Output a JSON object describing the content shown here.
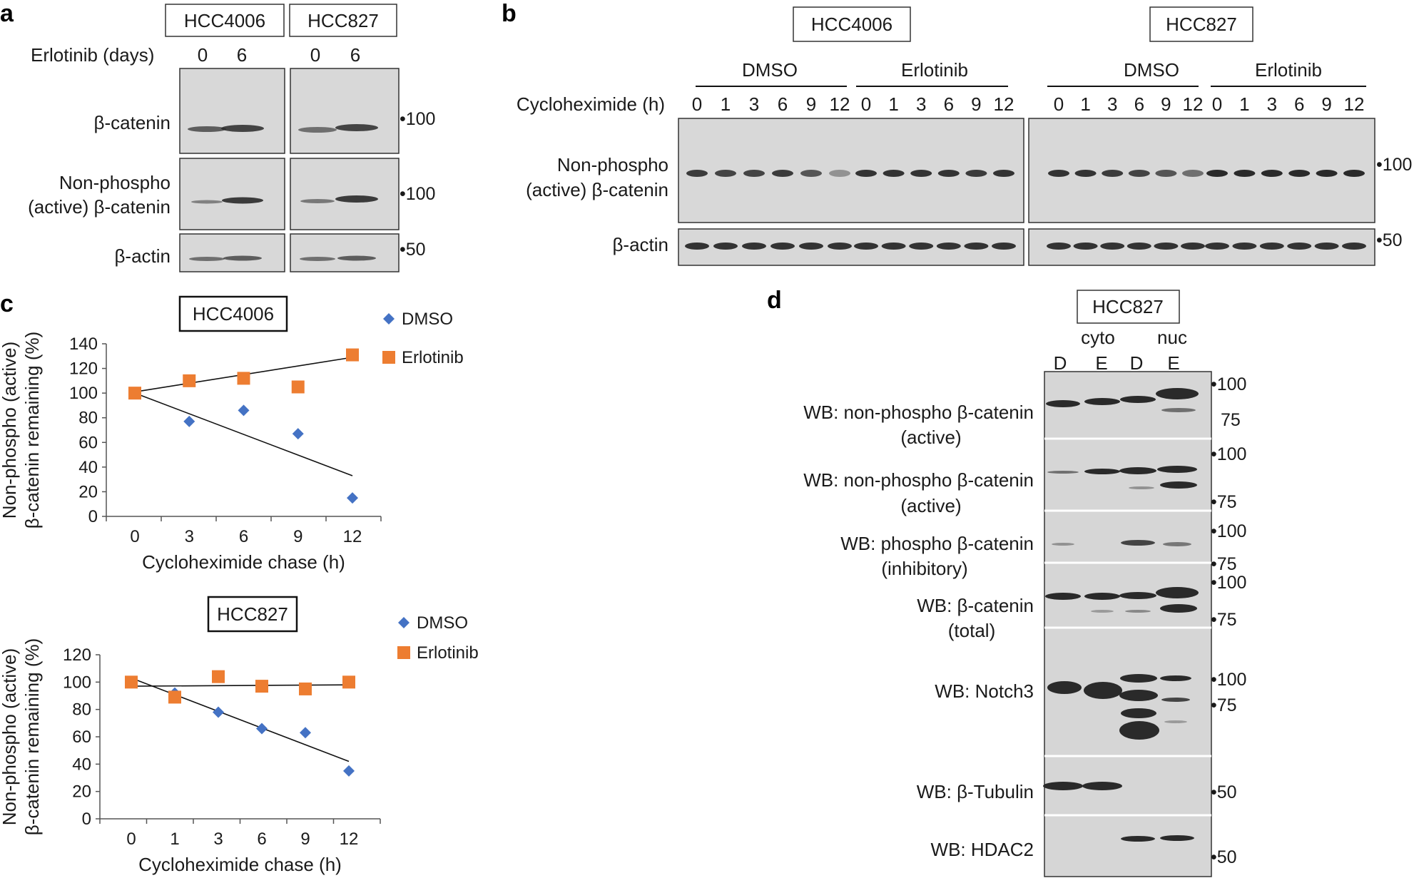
{
  "panels": {
    "a": {
      "letter": "a",
      "cell_lines": [
        "HCC4006",
        "HCC827"
      ],
      "treatment_label": "Erlotinib (days)",
      "days": [
        "0",
        "6",
        "0",
        "6"
      ],
      "rows": [
        {
          "label": "β-catenin",
          "mw": "•100"
        },
        {
          "label_lines": [
            "Non-phospho",
            "(active) β-catenin"
          ],
          "mw": "•100"
        },
        {
          "label": "β-actin",
          "mw": "•50"
        }
      ]
    },
    "b": {
      "letter": "b",
      "cell_lines": [
        "HCC4006",
        "HCC827"
      ],
      "groups": [
        "DMSO",
        "Erlotinib",
        "DMSO",
        "Erlotinib"
      ],
      "time_label": "Cycloheximide (h)",
      "times": [
        "0",
        "1",
        "3",
        "6",
        "9",
        "12"
      ],
      "rows": [
        {
          "label_lines": [
            "Non-phospho",
            "(active) β-catenin"
          ],
          "mw": "•100"
        },
        {
          "label": "β-actin",
          "mw": "•50"
        }
      ]
    },
    "c": {
      "letter": "c"
    },
    "d": {
      "letter": "d",
      "cell_line": "HCC827",
      "fractions": [
        "cyto",
        "nuc"
      ],
      "lanes": [
        "D",
        "E",
        "D",
        "E"
      ],
      "rows": [
        {
          "label_lines": [
            "WB: non-phospho β-catenin",
            "(active)"
          ],
          "mw": [
            "•100",
            "•75"
          ]
        },
        {
          "label_lines": [
            "WB: non-phospho β-catenin",
            "(active)"
          ],
          "mw": [
            "•100",
            "•75"
          ]
        },
        {
          "label_lines": [
            "WB: phospho β-catenin",
            "(inhibitory)"
          ],
          "mw": [
            "•100",
            "•75"
          ]
        },
        {
          "label_lines": [
            "WB: β-catenin",
            "(total)"
          ],
          "mw": [
            "•100",
            "•75"
          ]
        },
        {
          "label_lines": [
            "WB: Notch3"
          ],
          "mw": [
            "•100",
            "•75"
          ]
        },
        {
          "label_lines": [
            "WB: β-Tubulin"
          ],
          "mw": [
            "•50"
          ]
        },
        {
          "label_lines": [
            "WB: HDAC2"
          ],
          "mw": [
            "•50"
          ]
        }
      ]
    }
  },
  "chart_data": [
    {
      "type": "scatter",
      "title": "HCC4006",
      "xlabel": "Cycloheximide chase (h)",
      "ylabel_lines": [
        "Non-phospho (active)",
        "β-catenin remaining (%)"
      ],
      "categories": [
        "0",
        "3",
        "6",
        "9",
        "12"
      ],
      "ylim": [
        0,
        140
      ],
      "yticks": [
        "0",
        "20",
        "40",
        "60",
        "80",
        "100",
        "120",
        "140"
      ],
      "series": [
        {
          "name": "DMSO",
          "color": "#4472c4",
          "marker": "diamond",
          "values": [
            100,
            77,
            86,
            67,
            15
          ],
          "trend": [
            100,
            33
          ]
        },
        {
          "name": "Erlotinib",
          "color": "#ed7d31",
          "marker": "square",
          "values": [
            100,
            110,
            112,
            105,
            131
          ],
          "trend": [
            101,
            129
          ]
        }
      ],
      "legend": "top-right"
    },
    {
      "type": "scatter",
      "title": "HCC827",
      "xlabel": "Cycloheximide chase (h)",
      "ylabel_lines": [
        "Non-phospho (active)",
        "β-catenin remaining (%)"
      ],
      "categories": [
        "0",
        "1",
        "3",
        "6",
        "9",
        "12"
      ],
      "ylim": [
        0,
        120
      ],
      "yticks": [
        "0",
        "20",
        "40",
        "60",
        "80",
        "100",
        "120"
      ],
      "series": [
        {
          "name": "DMSO",
          "color": "#4472c4",
          "marker": "diamond",
          "values": [
            100,
            92,
            78,
            66,
            63,
            35
          ],
          "trend": [
            103,
            42
          ]
        },
        {
          "name": "Erlotinib",
          "color": "#ed7d31",
          "marker": "square",
          "values": [
            100,
            89,
            104,
            97,
            95,
            100
          ],
          "trend": [
            97,
            98
          ]
        }
      ],
      "legend": "top-right"
    }
  ]
}
